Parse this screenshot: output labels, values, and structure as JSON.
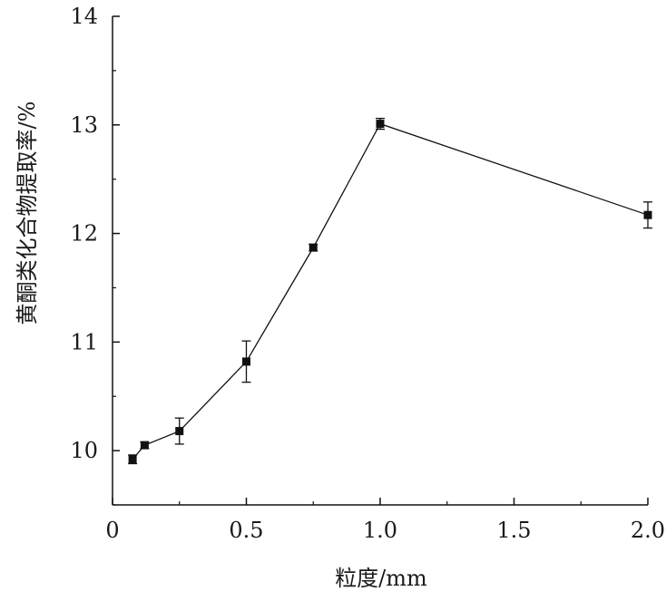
{
  "chart_data": {
    "type": "line",
    "title": "",
    "xlabel": "粒度/mm",
    "ylabel": "黄酮类化合物提取率/%",
    "xlim": [
      0,
      2.0
    ],
    "ylim": [
      9.5,
      14
    ],
    "xticks": [
      "0",
      "0.5",
      "1.0",
      "1.5",
      "2.0"
    ],
    "xtick_values": [
      0,
      0.5,
      1.0,
      1.5,
      2.0
    ],
    "yticks": [
      "10",
      "11",
      "12",
      "13",
      "14"
    ],
    "ytick_values": [
      10,
      11,
      12,
      13,
      14
    ],
    "grid": false,
    "legend": "none",
    "marker": "square",
    "color": "#111111",
    "series": [
      {
        "x": [
          0.075,
          0.12,
          0.25,
          0.5,
          0.75,
          1.0,
          2.0
        ],
        "y": [
          9.92,
          10.05,
          10.18,
          10.82,
          11.87,
          13.01,
          12.17
        ],
        "error": [
          0.04,
          0.03,
          0.12,
          0.19,
          0.03,
          0.05,
          0.12
        ]
      }
    ]
  }
}
